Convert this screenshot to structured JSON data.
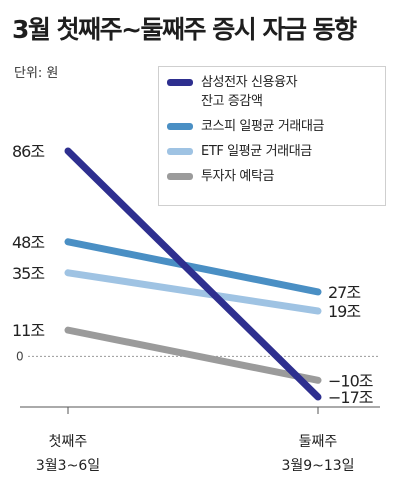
{
  "title": "3월 첫째주~둘째주 증시 자금 동향",
  "unit": "단위: 원",
  "chart_data": {
    "type": "line",
    "title": "3월 첫째주~둘째주 증시 자금 동향",
    "x": [
      {
        "label": "첫째주",
        "sublabel": "3월3~6일"
      },
      {
        "label": "둘째주",
        "sublabel": "3월9~13일"
      }
    ],
    "ylim": [
      -17,
      86
    ],
    "zero_label": "0",
    "series": [
      {
        "name": "삼성전자 신용융자\n잔고 증감액",
        "values": [
          86,
          -17
        ],
        "labels": [
          "86조",
          "−17조"
        ],
        "color": "#2e2f8f"
      },
      {
        "name": "코스피 일평균 거래대금",
        "values": [
          48,
          27
        ],
        "labels": [
          "48조",
          "27조"
        ],
        "color": "#4a8fc4"
      },
      {
        "name": "ETF 일평균 거래대금",
        "values": [
          35,
          19
        ],
        "labels": [
          "35조",
          "19조"
        ],
        "color": "#9fc3e3"
      },
      {
        "name": "투자자 예탁금",
        "values": [
          11,
          -10
        ],
        "labels": [
          "11조",
          "−10조"
        ],
        "color": "#9b9b9b"
      }
    ]
  }
}
